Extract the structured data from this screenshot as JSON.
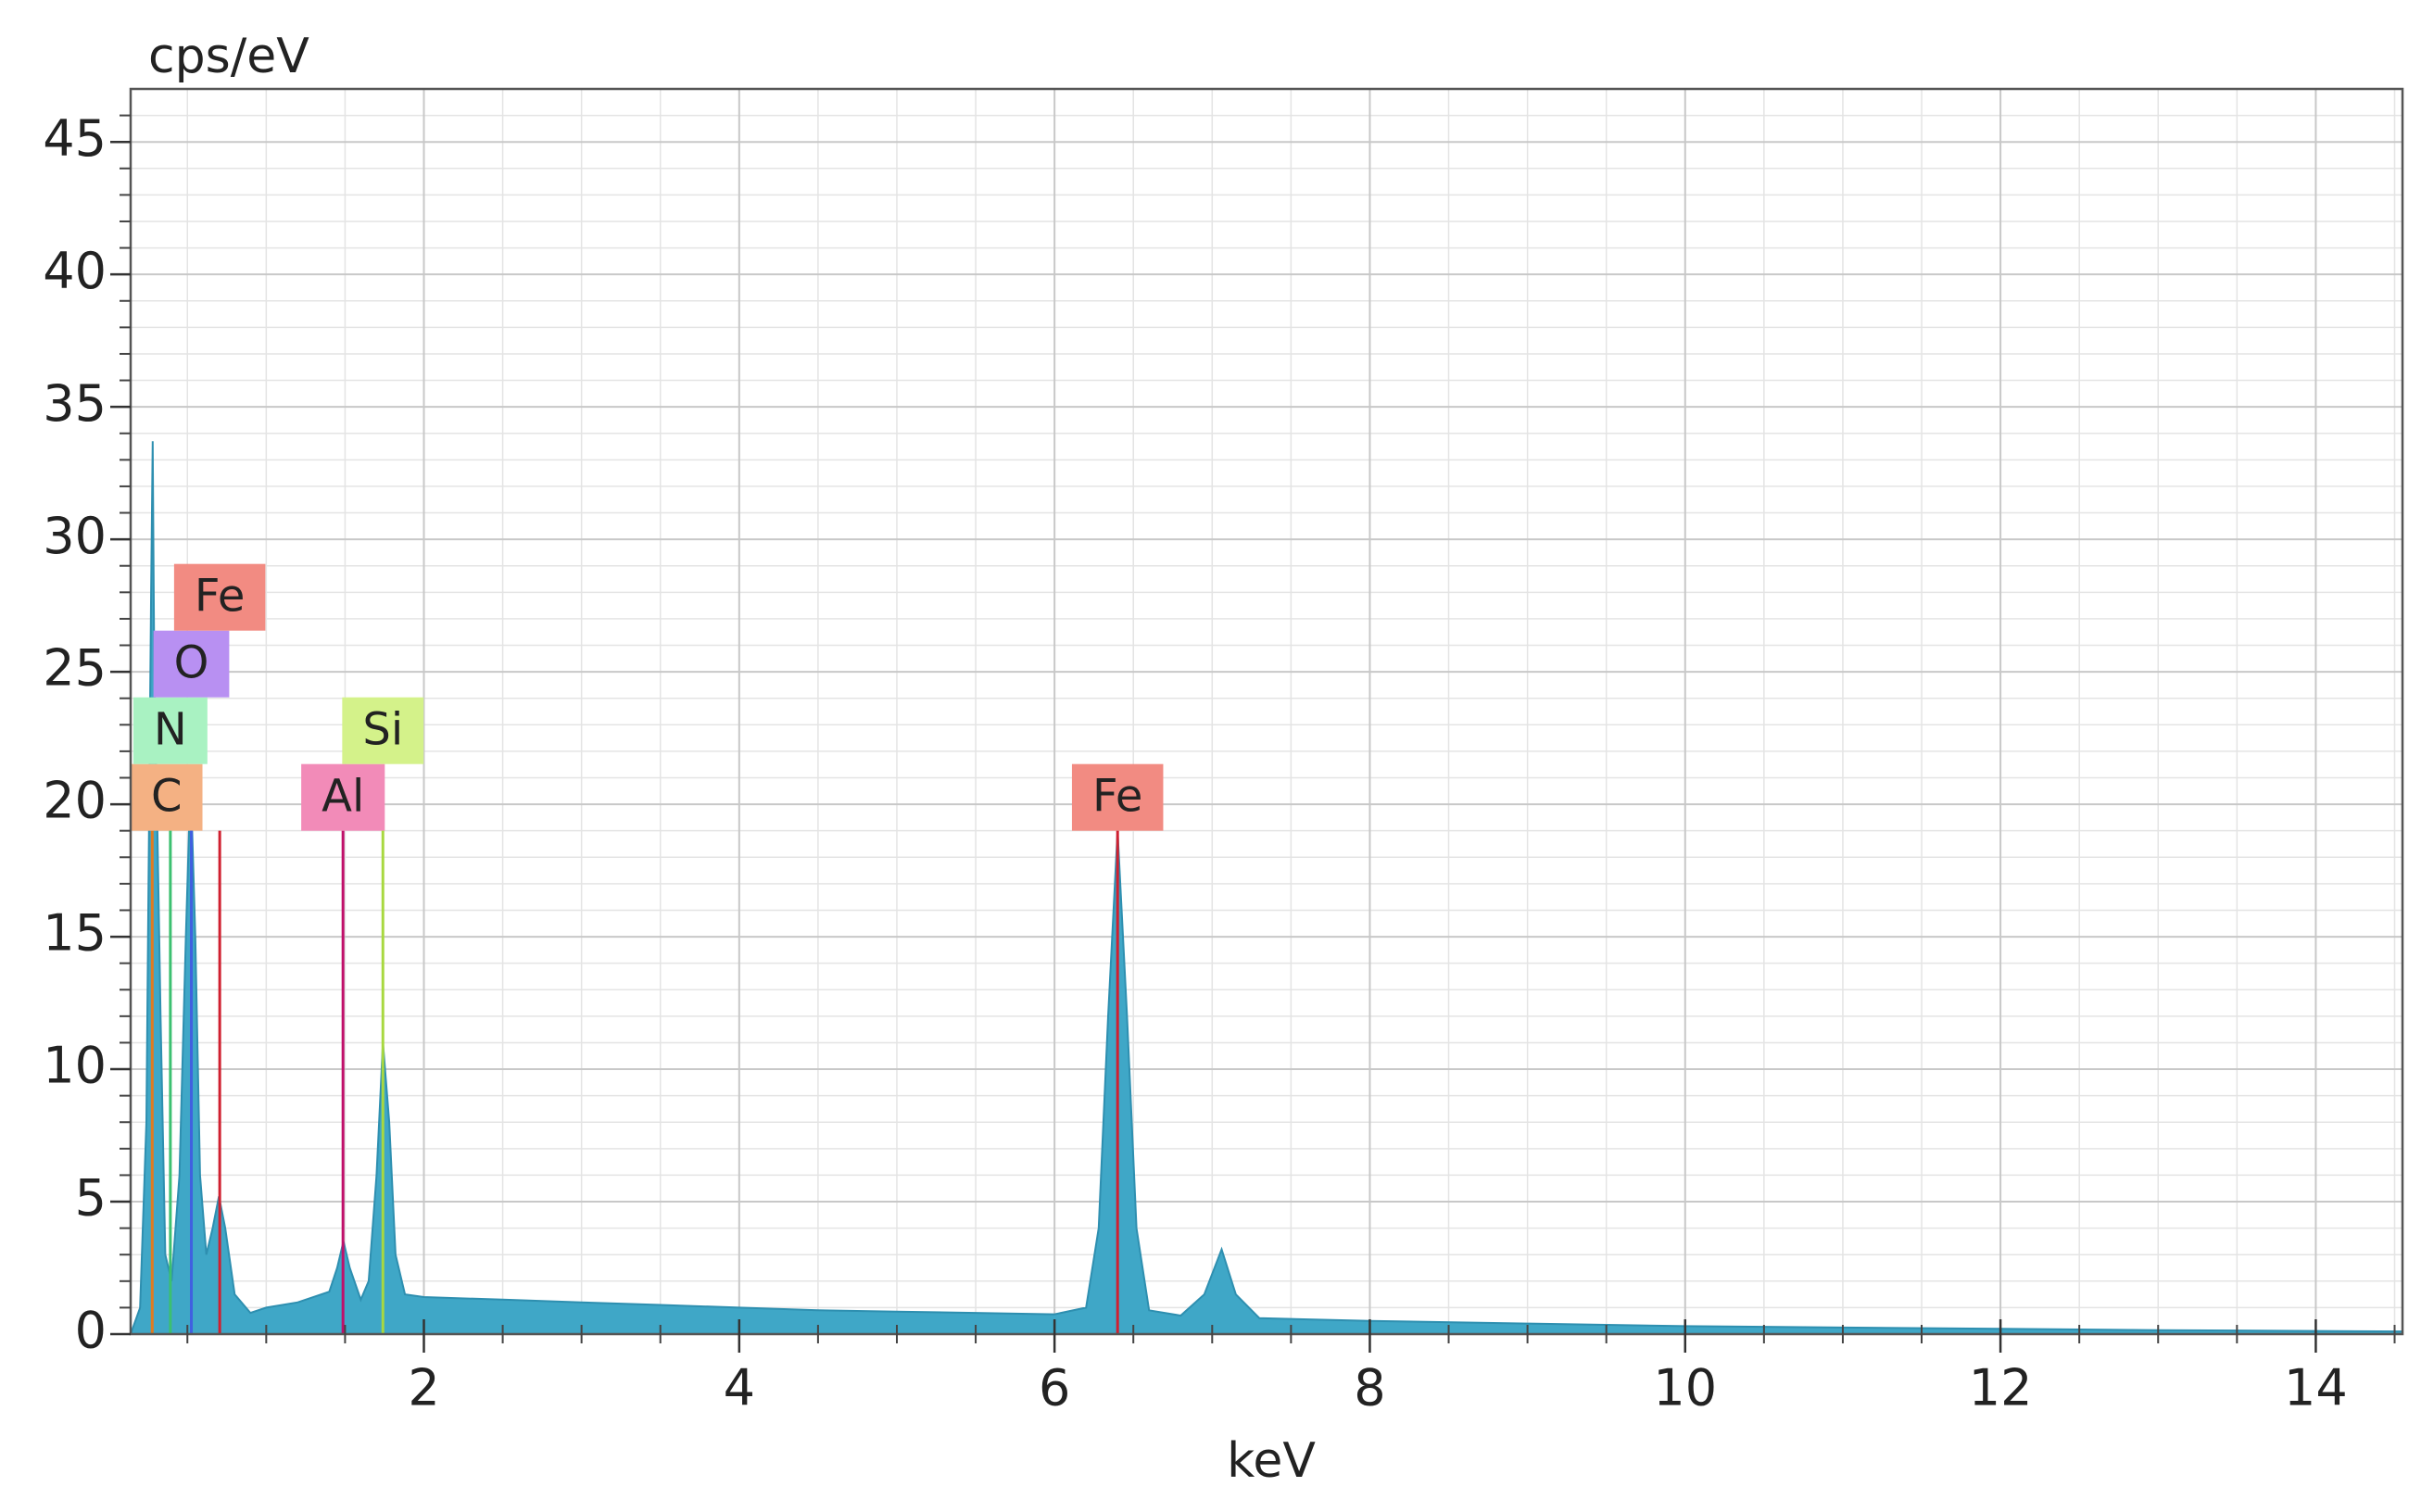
{
  "chart_data": {
    "type": "area",
    "y_label": "cps/eV",
    "x_label": "keV",
    "color": "#3fa7c7",
    "xlim": [
      0.14,
      14.55
    ],
    "ylim": [
      0,
      47
    ],
    "xticks": [
      2,
      4,
      6,
      8,
      10,
      12,
      14
    ],
    "yticks": [
      0,
      5,
      10,
      15,
      20,
      25,
      30,
      35,
      40,
      45
    ],
    "minor_xticks": [
      0.5,
      1,
      1.5,
      2.5,
      3,
      3.5,
      4.5,
      5,
      5.5,
      6.5,
      7,
      7.5,
      8.5,
      9,
      9.5,
      10.5,
      11,
      11.5,
      12.5,
      13,
      13.5,
      14.5
    ],
    "minor_yticks": [
      1,
      2,
      3,
      4,
      6,
      7,
      8,
      9,
      11,
      12,
      13,
      14,
      16,
      17,
      18,
      19,
      21,
      22,
      23,
      24,
      26,
      27,
      28,
      29,
      31,
      32,
      33,
      34,
      36,
      37,
      38,
      39,
      41,
      42,
      43,
      44,
      46
    ],
    "grid": true,
    "x": [
      0.14,
      0.2,
      0.24,
      0.27,
      0.28,
      0.29,
      0.31,
      0.33,
      0.36,
      0.4,
      0.45,
      0.49,
      0.52,
      0.55,
      0.58,
      0.62,
      0.66,
      0.7,
      0.74,
      0.8,
      0.9,
      1.0,
      1.2,
      1.4,
      1.45,
      1.49,
      1.53,
      1.6,
      1.65,
      1.7,
      1.74,
      1.78,
      1.82,
      1.88,
      2.0,
      2.5,
      3.0,
      3.5,
      4.0,
      4.5,
      5.0,
      5.5,
      6.0,
      6.2,
      6.28,
      6.34,
      6.4,
      6.46,
      6.52,
      6.6,
      6.8,
      6.95,
      7.06,
      7.15,
      7.3,
      8,
      9,
      10,
      11,
      12,
      13,
      14,
      14.55
    ],
    "values": [
      0,
      1,
      8,
      28,
      33.7,
      25,
      19,
      12,
      3,
      2,
      6,
      15,
      21,
      15,
      6,
      3,
      4,
      5.2,
      4,
      1.5,
      0.8,
      1.0,
      1.2,
      1.6,
      2.5,
      3.5,
      2.5,
      1.3,
      2,
      6,
      11,
      8,
      3,
      1.5,
      1.4,
      1.3,
      1.2,
      1.1,
      1.0,
      0.9,
      0.85,
      0.8,
      0.75,
      1.0,
      4,
      12,
      19,
      12,
      4,
      0.9,
      0.7,
      1.5,
      3.2,
      1.5,
      0.6,
      0.5,
      0.4,
      0.3,
      0.25,
      0.2,
      0.15,
      0.12,
      0.1
    ],
    "markers": [
      {
        "label": "C",
        "energy": 0.277,
        "height": 19,
        "color": "#f4b183",
        "line_color": "#e07b20"
      },
      {
        "label": "N",
        "energy": 0.392,
        "height": 19,
        "color": "#a9f2c2",
        "line_color": "#3cc070"
      },
      {
        "label": "O",
        "energy": 0.525,
        "height": 19,
        "color": "#b890f2",
        "line_color": "#4060e0"
      },
      {
        "label": "Fe",
        "energy": 0.705,
        "height": 19,
        "color": "#f28b82",
        "line_color": "#d02030"
      },
      {
        "label": "Al",
        "energy": 1.487,
        "height": 19,
        "color": "#f28bb8",
        "line_color": "#c0106a"
      },
      {
        "label": "Si",
        "energy": 1.74,
        "height": 19,
        "color": "#d4f28a",
        "line_color": "#a8d840"
      },
      {
        "label": "Fe",
        "energy": 6.4,
        "height": 19,
        "color": "#f28b82",
        "line_color": "#d02030"
      }
    ]
  }
}
